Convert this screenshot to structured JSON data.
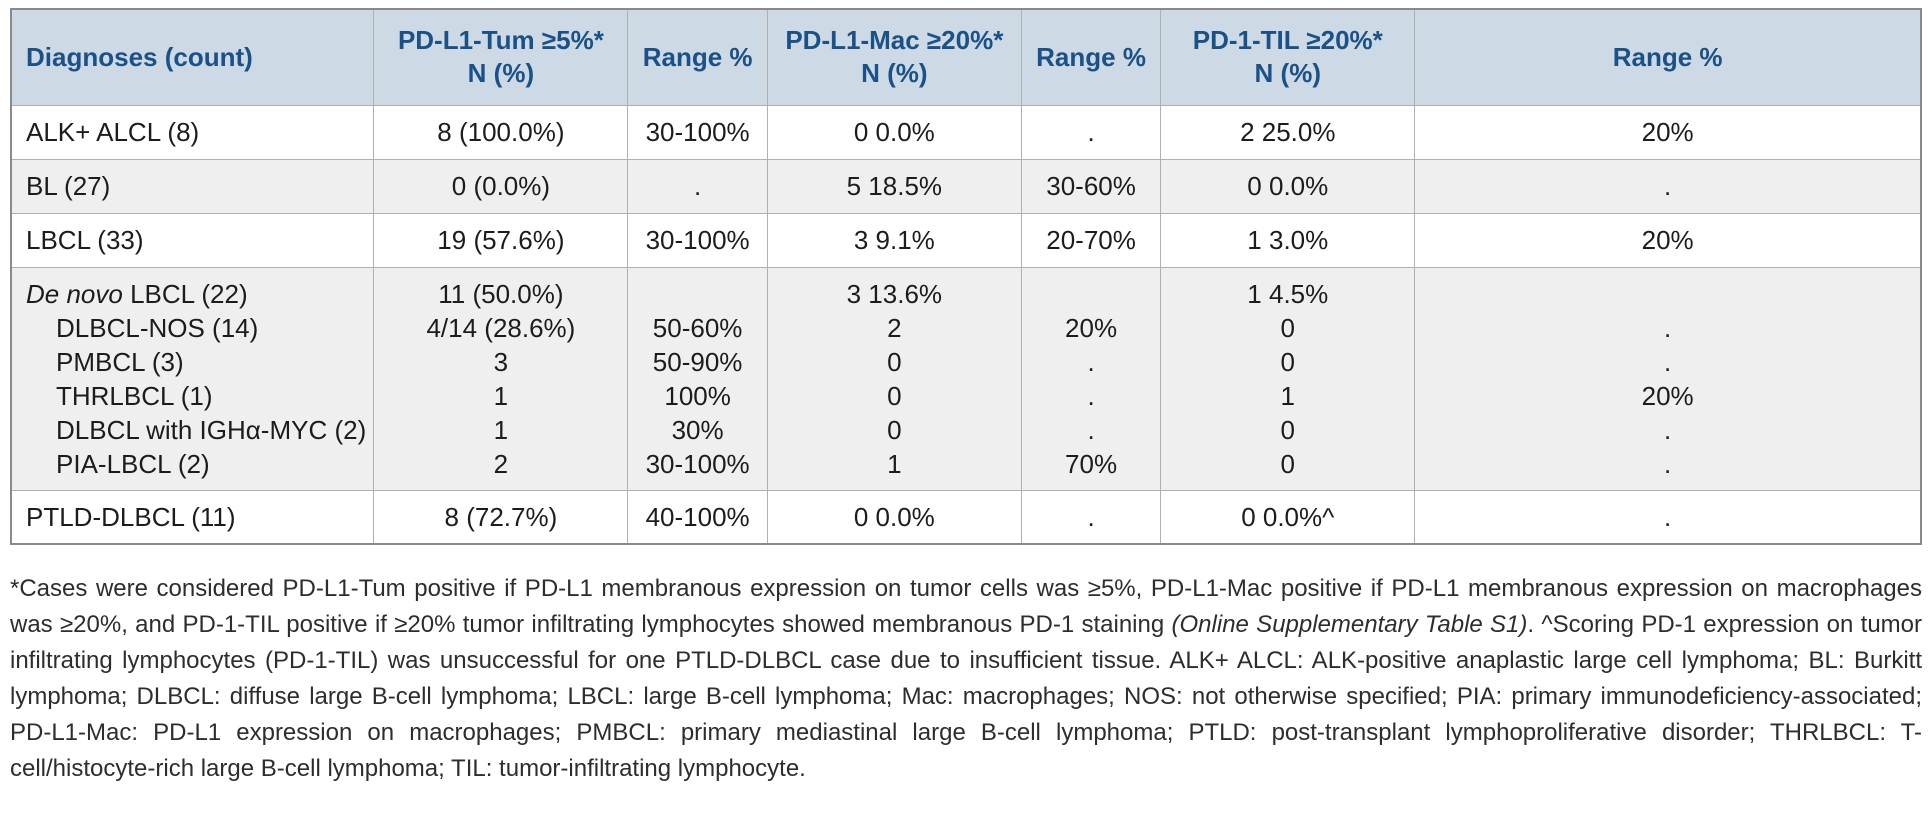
{
  "colors": {
    "header_bg": "#cdd9e4",
    "header_text": "#1a5187",
    "row_shade": "#efefef",
    "row_plain": "#ffffff",
    "border_outer": "#8a8a8a",
    "border_inner": "#b0b0b0",
    "body_text": "#1c1c1c",
    "footnote_text": "#2d2d2d"
  },
  "header": {
    "columns": [
      {
        "line1": "Diagnoses (count)",
        "line2": ""
      },
      {
        "line1": "PD-L1-Tum ≥5%*",
        "line2": "N (%)"
      },
      {
        "line1": "Range %",
        "line2": ""
      },
      {
        "line1": "PD-L1-Mac ≥20%*",
        "line2": "N (%)"
      },
      {
        "line1": "Range %",
        "line2": ""
      },
      {
        "line1": "PD-1-TIL ≥20%*",
        "line2": "N (%)"
      },
      {
        "line1": "Range %",
        "line2": ""
      }
    ]
  },
  "rows": [
    {
      "shaded": false,
      "diagnosis": [
        {
          "text": "ALK+ ALCL (8)",
          "indent": false
        }
      ],
      "values": [
        [
          "8 (100.0%)"
        ],
        [
          "30-100%"
        ],
        [
          "0 0.0%"
        ],
        [
          "."
        ],
        [
          "2 25.0%"
        ],
        [
          "20%"
        ]
      ]
    },
    {
      "shaded": true,
      "diagnosis": [
        {
          "text": "BL (27)",
          "indent": false
        }
      ],
      "values": [
        [
          "0 (0.0%)"
        ],
        [
          "."
        ],
        [
          "5 18.5%"
        ],
        [
          "30-60%"
        ],
        [
          "0 0.0%"
        ],
        [
          "."
        ]
      ]
    },
    {
      "shaded": false,
      "diagnosis": [
        {
          "text": "LBCL (33)",
          "indent": false
        }
      ],
      "values": [
        [
          "19 (57.6%)"
        ],
        [
          "30-100%"
        ],
        [
          "3 9.1%"
        ],
        [
          "20-70%"
        ],
        [
          "1 3.0%"
        ],
        [
          "20%"
        ]
      ]
    },
    {
      "shaded": true,
      "diagnosis": [
        {
          "italic": "De novo",
          "text": " LBCL (22)",
          "indent": false
        },
        {
          "text": "DLBCL-NOS (14)",
          "indent": true
        },
        {
          "text": "PMBCL (3)",
          "indent": true
        },
        {
          "text": "THRLBCL (1)",
          "indent": true
        },
        {
          "text": "DLBCL with IGHα-MYC (2)",
          "indent": true
        },
        {
          "text": "PIA-LBCL (2)",
          "indent": true
        }
      ],
      "values": [
        [
          "11 (50.0%)",
          "4/14 (28.6%)",
          "3",
          "1",
          "1",
          "2"
        ],
        [
          "",
          "50-60%",
          "50-90%",
          "100%",
          "30%",
          "30-100%"
        ],
        [
          "3 13.6%",
          "2",
          "0",
          "0",
          "0",
          "1"
        ],
        [
          "",
          "20%",
          ".",
          ".",
          ".",
          "70%"
        ],
        [
          "1 4.5%",
          "0",
          "0",
          "1",
          "0",
          "0"
        ],
        [
          "",
          ".",
          ".",
          "20%",
          ".",
          "."
        ]
      ]
    },
    {
      "shaded": false,
      "diagnosis": [
        {
          "text": "PTLD-DLBCL (11)",
          "indent": false
        }
      ],
      "values": [
        [
          "8 (72.7%)"
        ],
        [
          "40-100%"
        ],
        [
          "0 0.0%"
        ],
        [
          "."
        ],
        [
          "0 0.0%^"
        ],
        [
          "."
        ]
      ]
    }
  ],
  "footnote": {
    "segments": [
      {
        "italic": false,
        "text": "*Cases were considered PD-L1-Tum positive if PD-L1 membranous expression on tumor cells was ≥5%, PD-L1-Mac positive if PD-L1 membranous expression on macrophages was ≥20%, and PD-1-TIL positive if ≥20% tumor infiltrating lymphocytes showed membranous PD-1 staining "
      },
      {
        "italic": true,
        "text": "(Online Supplementary Table S1)"
      },
      {
        "italic": false,
        "text": ". ^Scoring PD-1 expression on tumor infiltrating lymphocytes (PD-1-TIL) was unsuccessful for one PTLD-DLBCL case due to insufficient tissue. ALK+ ALCL: ALK-positive anaplastic large cell lymphoma; BL: Burkitt lymphoma; DLBCL: diffuse large B-cell lymphoma; LBCL: large B-cell lymphoma; Mac: macrophages; NOS: not otherwise specified; PIA: primary immunodeficiency-associated; PD-L1-Mac: PD-L1 expression on macrophages; PMBCL: primary mediastinal large B-cell lymphoma; PTLD: post-transplant lymphoproliferative disorder; THRLBCL: T-cell/histocyte-rich large B-cell lymphoma; TIL: tumor-infiltrating lymphocyte."
      }
    ]
  }
}
